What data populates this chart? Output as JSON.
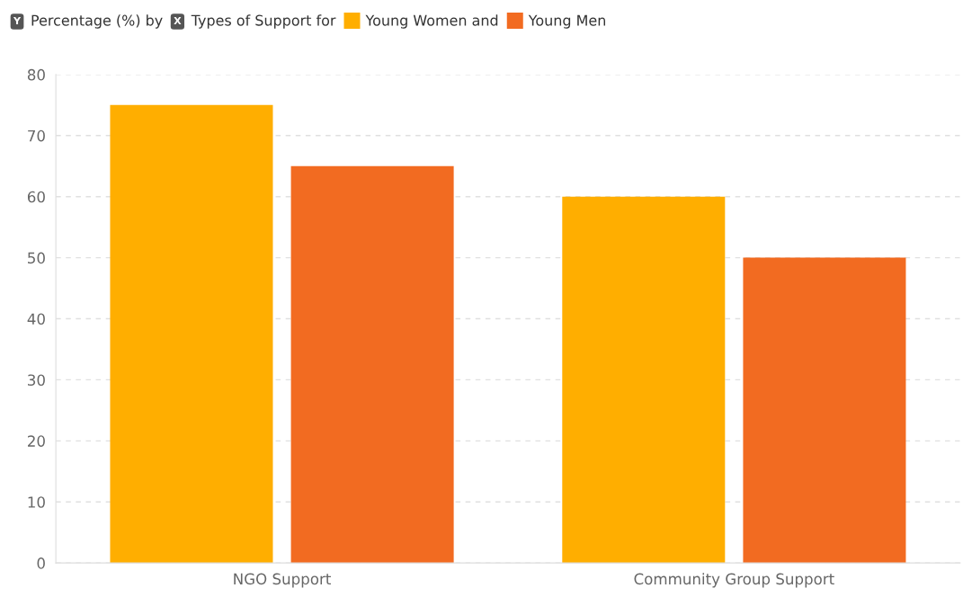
{
  "chart_data": {
    "type": "bar",
    "ylabel": "Percentage (%) by",
    "xlabel": "Types of Support for",
    "annotations": [
      "Y",
      "X"
    ],
    "categories": [
      "NGO Support",
      "Community Group Support"
    ],
    "series": [
      {
        "name": "Young Women and",
        "color": "#ffae00",
        "values": [
          75,
          60
        ]
      },
      {
        "name": "Young Men",
        "color": "#f26b21",
        "values": [
          65,
          50
        ]
      }
    ],
    "ylim": [
      0,
      80
    ],
    "yticks": [
      0,
      10,
      20,
      30,
      40,
      50,
      60,
      70,
      80
    ],
    "grid": "y",
    "legend": "top left"
  }
}
